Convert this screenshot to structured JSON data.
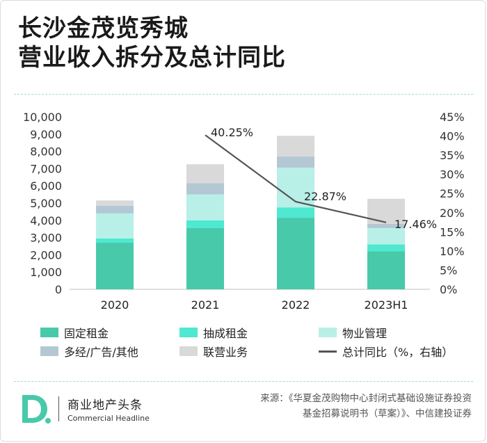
{
  "title": {
    "line1": "长沙金茂览秀城",
    "line2": "营业收入拆分及总计同比"
  },
  "chart_data": {
    "type": "bar",
    "stacked": true,
    "categories": [
      "2020",
      "2021",
      "2022",
      "2023H1"
    ],
    "series": [
      {
        "name": "固定租金",
        "color": "#47c9aa",
        "values": [
          2700,
          3550,
          4150,
          2200
        ]
      },
      {
        "name": "抽成租金",
        "color": "#4fe8d0",
        "values": [
          250,
          450,
          600,
          400
        ]
      },
      {
        "name": "物业管理",
        "color": "#b8f0e8",
        "values": [
          1450,
          1500,
          2300,
          950
        ]
      },
      {
        "name": "多经/广告/其他",
        "color": "#b4c8d4",
        "values": [
          450,
          650,
          650,
          250
        ]
      },
      {
        "name": "联营业务",
        "color": "#d9d9d9",
        "values": [
          300,
          1100,
          1200,
          1450
        ]
      }
    ],
    "line_series": {
      "name": "总计同比（%，右轴）",
      "color": "#555555",
      "values": [
        null,
        40.25,
        22.87,
        17.46
      ],
      "labels": [
        "",
        "40.25%",
        "22.87%",
        "17.46%"
      ]
    },
    "y_left": {
      "min": 0,
      "max": 10000,
      "step": 1000,
      "ticks": [
        "0",
        "1,000",
        "2,000",
        "3,000",
        "4,000",
        "5,000",
        "6,000",
        "7,000",
        "8,000",
        "9,000",
        "10,000"
      ]
    },
    "y_right": {
      "min": 0,
      "max": 45,
      "step": 5,
      "ticks": [
        "0%",
        "5%",
        "10%",
        "15%",
        "20%",
        "25%",
        "30%",
        "35%",
        "40%",
        "45%"
      ]
    },
    "legend_position": "bottom"
  },
  "legend": {
    "items": [
      "固定租金",
      "抽成租金",
      "物业管理",
      "多经/广告/其他",
      "联营业务",
      "总计同比（%，右轴）"
    ]
  },
  "footer": {
    "logo_cn": "商业地产头条",
    "logo_en": "Commercial Headline",
    "source_line1": "来源：《华夏金茂购物中心封闭式基础设施证券投资",
    "source_line2": "基金招募说明书（草案）》、中信建投证券"
  }
}
